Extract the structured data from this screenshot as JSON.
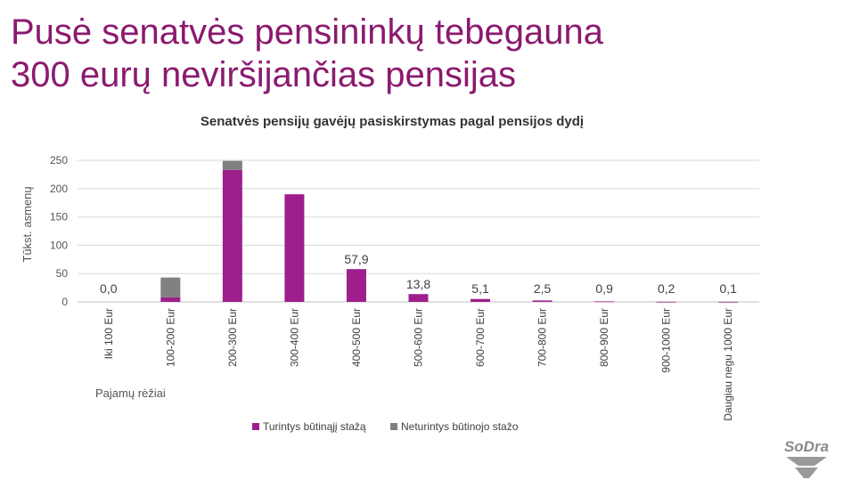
{
  "slide": {
    "title_line1": "Pusė senatvės pensininkų tebegauna",
    "title_line2": "300 eurų neviršijančias pensijas",
    "logo_text": "SoDra"
  },
  "colors": {
    "title": "#8b1a6f",
    "series_primary": "#9e1f8c",
    "series_secondary": "#808080",
    "grid": "#d9d9d9"
  },
  "chart_data": {
    "type": "bar",
    "stacked": true,
    "title": "Senatvės pensijų gavėjų pasiskirstymas pagal pensijos dydį",
    "xlabel": "Pajamų rėžiai",
    "ylabel": "Tūkst. asmenų",
    "ylim": [
      0,
      250
    ],
    "yticks": [
      0,
      50,
      100,
      150,
      200,
      250
    ],
    "grid": true,
    "legend_position": "bottom",
    "categories": [
      "Iki 100 Eur",
      "100-200 Eur",
      "200-300 Eur",
      "300-400 Eur",
      "400-500 Eur",
      "500-600 Eur",
      "600-700 Eur",
      "700-800 Eur",
      "800-900 Eur",
      "900-1000 Eur",
      "Daugiau negu 1000 Eur"
    ],
    "series": [
      {
        "name": "Turintys būtinąjį stažą",
        "color": "#9e1f8c",
        "values": [
          0.0,
          8,
          233,
          190,
          57.9,
          13.8,
          5.1,
          2.5,
          0.9,
          0.2,
          0.1
        ]
      },
      {
        "name": "Neturintys būtinojo stažo",
        "color": "#808080",
        "values": [
          0.0,
          35,
          16,
          0,
          0,
          0,
          0,
          0,
          0,
          0,
          0
        ]
      }
    ],
    "data_labels": [
      "0,0",
      "",
      "",
      "",
      "57,9",
      "13,8",
      "5,1",
      "2,5",
      "0,9",
      "0,2",
      "0,1"
    ]
  }
}
